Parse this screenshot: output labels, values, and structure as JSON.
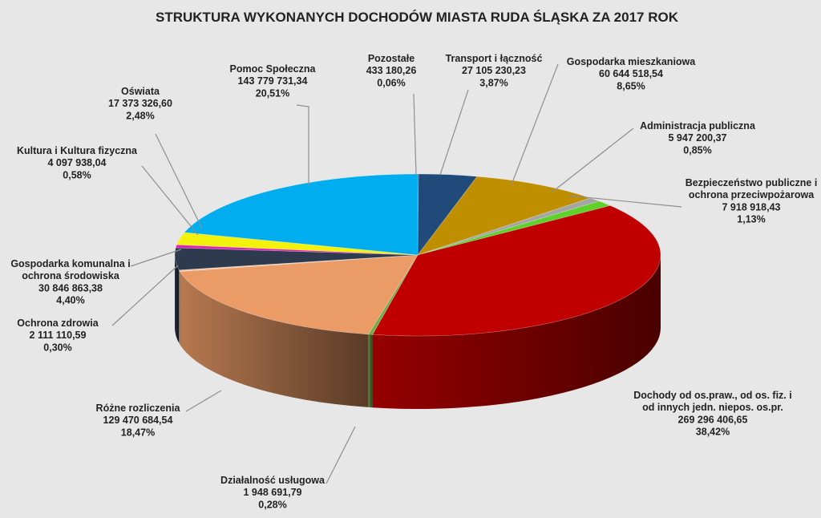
{
  "chart_data": {
    "type": "pie",
    "title": "STRUKTURA WYKONANYCH DOCHODÓW MIASTA RUDA ŚLĄSKA ZA 2017 ROK",
    "three_d": true,
    "legend": "none",
    "slices": [
      {
        "label": "Pozostałe",
        "value": "433 180,26",
        "percent": "0,06%",
        "pct": 0.06,
        "color": "#1a4e99"
      },
      {
        "label": "Transport i łączność",
        "value": "27 105 230,23",
        "percent": "3,87%",
        "pct": 3.87,
        "color": "#1f4a7a"
      },
      {
        "label": "Gospodarka mieszkaniowa",
        "value": "60 644 518,54",
        "percent": "8,65%",
        "pct": 8.65,
        "color": "#bf8f00"
      },
      {
        "label": "Administracja publiczna",
        "value": "5 947 200,37",
        "percent": "0,85%",
        "pct": 0.85,
        "color": "#a5a5a5"
      },
      {
        "label": "Bezpieczeństwo publiczne i ochrona przeciwpożarowa",
        "label_lines": [
          "Bezpieczeństwo publiczne i",
          "ochrona przeciwpożarowa"
        ],
        "value": "7 918 918,43",
        "percent": "1,13%",
        "pct": 1.13,
        "color": "#5ed12a"
      },
      {
        "label": "Dochody od os.praw., od os. fiz. i od innych jedn. niepos. os.pr.",
        "label_lines": [
          "Dochody od os.praw., od os. fiz. i",
          "od innych jedn. niepos. os.pr."
        ],
        "value": "269 296 406,65",
        "percent": "38,42%",
        "pct": 38.42,
        "color": "#c00000"
      },
      {
        "label": "Działalność usługowa",
        "value": "1 948 691,79",
        "percent": "0,28%",
        "pct": 0.28,
        "color": "#70ad47"
      },
      {
        "label": "Różne rozliczenia",
        "value": "129 470 684,54",
        "percent": "18,47%",
        "pct": 18.47,
        "color": "#eb9b66"
      },
      {
        "label": "Ochrona zdrowia",
        "value": "2 111 110,59",
        "percent": "0,30%",
        "pct": 0.3,
        "color": "#f4c7a8"
      },
      {
        "label": "Gospodarka komunalna i ochrona środowiska",
        "label_lines": [
          "Gospodarka komunalna i",
          "ochrona środowiska"
        ],
        "value": "30 846 863,38",
        "percent": "4,40%",
        "pct": 4.4,
        "color": "#2e3b4e"
      },
      {
        "label": "Kultura i Kultura fizyczna",
        "value": "4 097 938,04",
        "percent": "0,58%",
        "pct": 0.58,
        "color": "#e01fb8"
      },
      {
        "label": "Oświata",
        "value": "17 373 326,60",
        "percent": "2,48%",
        "pct": 2.48,
        "color": "#f2f20d"
      },
      {
        "label": "Pomoc Społeczna",
        "value": "143 779 731,34",
        "percent": "20,51%",
        "pct": 20.51,
        "color": "#00aeef"
      }
    ]
  }
}
